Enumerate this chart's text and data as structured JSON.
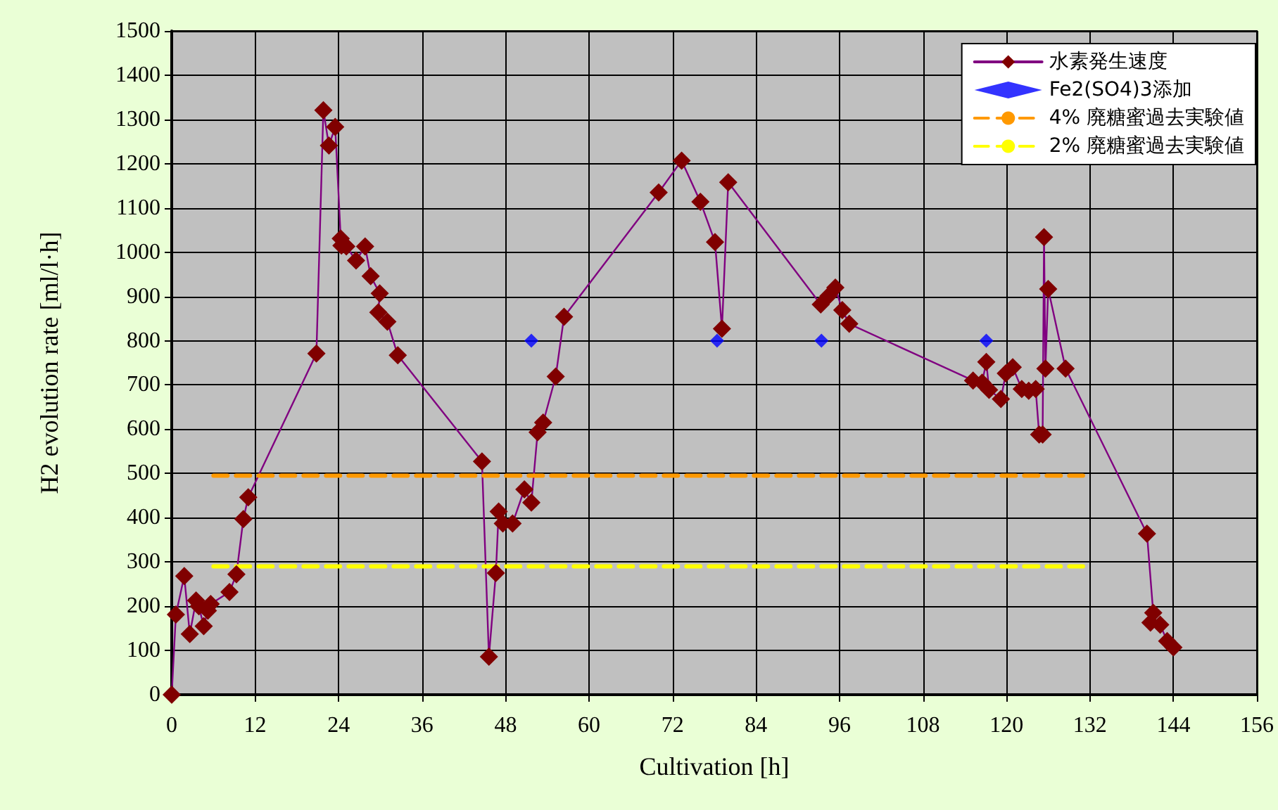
{
  "chart_data": {
    "type": "line",
    "xlabel": "Cultivation [h]",
    "ylabel": "H2 evolution rate [ml/l·h]",
    "xlim": [
      0,
      156
    ],
    "xticks": [
      0,
      12,
      24,
      36,
      48,
      60,
      72,
      84,
      96,
      108,
      120,
      132,
      144,
      156
    ],
    "ylim": [
      0,
      1500
    ],
    "yticks": [
      0,
      100,
      200,
      300,
      400,
      500,
      600,
      700,
      800,
      900,
      1000,
      1100,
      1200,
      1300,
      1400,
      1500
    ],
    "grid": true,
    "legend": "top right",
    "series": [
      {
        "name": "水素発生速度",
        "color": "#800080",
        "colors": [
          "#800000",
          "#800000",
          "#800000",
          "#800000",
          "#800000",
          "#800000",
          "#800000",
          "#800000",
          "#800000",
          "#800000",
          "#800000",
          "#800000",
          "#800000",
          "#800000",
          "#800000",
          "#800000",
          "#800000",
          "#800000",
          "#800000",
          "#800000",
          "#800000",
          "#800000",
          "#800000",
          "#800000",
          "#800000",
          "#800000",
          "#800000",
          "#800000",
          "#800000",
          "#800000",
          "#800000",
          "#800000",
          "#800000",
          "#800000",
          "#800000",
          "#800000",
          "#800000",
          "#800000",
          "#800000",
          "#800000",
          "#800000",
          "#800000",
          "#800000",
          "#800000",
          "#800000",
          "#800000",
          "#800000",
          "#800000",
          "#800000",
          "#800000",
          "#800000",
          "#800000",
          "#800000",
          "#800000",
          "#800000",
          "#800000",
          "#800000",
          "#800000",
          "#800000",
          "#800000",
          "#800000",
          "#800000",
          "#800000",
          "#800000",
          "#800000",
          "#800000",
          "#800000",
          "#800000",
          "#800000",
          "#800000",
          "#800000",
          "#800000"
        ],
        "marker": "diamond",
        "line_style": "solid",
        "x": [
          0,
          0.6,
          1.8,
          2.6,
          3.5,
          3.9,
          4.6,
          5.2,
          5.6,
          8.3,
          9.3,
          10.3,
          11.0,
          20.8,
          21.8,
          22.6,
          23.5,
          24.3,
          24.4,
          25.1,
          26.5,
          27.8,
          28.6,
          29.9,
          29.7,
          31.0,
          32.5,
          44.6,
          45.6,
          46.6,
          47.0,
          47.6,
          49.0,
          50.7,
          51.7,
          52.6,
          53.4,
          55.2,
          56.4,
          70.0,
          73.3,
          76.0,
          78.1,
          79.1,
          80.0,
          93.3,
          94.4,
          95.4,
          96.4,
          97.4,
          115.2,
          116.5,
          117.1,
          117.5,
          119.2,
          119.9,
          120.9,
          122.2,
          123.2,
          124.2,
          124.7,
          125.2,
          125.4,
          125.6,
          126.0,
          128.5,
          140.2,
          141.1,
          140.7,
          142.1,
          143.1,
          144.0
        ],
        "values": [
          0,
          181,
          268,
          137,
          213,
          200,
          155,
          190,
          205,
          232,
          272,
          397,
          446,
          771,
          1321,
          1241,
          1283,
          1031,
          1015,
          1013,
          981,
          1013,
          946,
          907,
          864,
          843,
          767,
          527,
          86,
          275,
          414,
          387,
          387,
          464,
          434,
          593,
          615,
          719,
          854,
          1135,
          1207,
          1114,
          1023,
          827,
          1158,
          882,
          901,
          920,
          869,
          838,
          710,
          705,
          752,
          689,
          668,
          726,
          740,
          691,
          687,
          691,
          588,
          588,
          1034,
          737,
          917,
          737,
          364,
          185,
          163,
          158,
          121,
          107
        ]
      },
      {
        "name": "Fe2(SO4)3添加",
        "type": "scatter",
        "color": "#0000ff",
        "marker": "diamond",
        "x": [
          51.7,
          78.4,
          93.4,
          117.1
        ],
        "values": [
          800,
          800,
          800,
          800
        ]
      },
      {
        "name": "4% 廃糖蜜過去実験値",
        "type": "line",
        "color": "#ff9900",
        "marker": "none",
        "line_style": "dashed",
        "x": [
          6,
          131
        ],
        "values": [
          495,
          495
        ]
      },
      {
        "name": "2% 廃糖蜜過去実験値",
        "type": "line",
        "color": "#ffff00",
        "marker": "none",
        "line_style": "dashed",
        "x": [
          6,
          131
        ],
        "values": [
          290,
          290
        ]
      }
    ]
  }
}
